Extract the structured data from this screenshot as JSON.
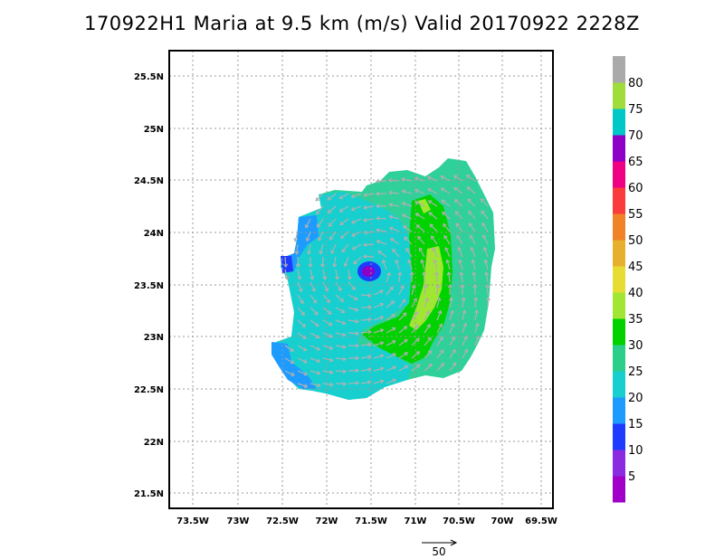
{
  "title": "170922H1 Maria at 9.5 km (m/s) Valid 20170922 2228Z",
  "map": {
    "lat_labels": [
      "25.5N",
      "25N",
      "24.5N",
      "24N",
      "23.5N",
      "23N",
      "22.5N",
      "22N",
      "21.5N"
    ],
    "lon_labels": [
      "73.5W",
      "73W",
      "72.5W",
      "72W",
      "71.5W",
      "71W",
      "70.5W",
      "70W",
      "69.5W"
    ],
    "lat_range": [
      21.35,
      25.85
    ],
    "lon_range": [
      -73.7,
      -69.6
    ],
    "grid": true,
    "grid_style": "dotted",
    "storm_center": {
      "lat": 23.65,
      "lon": -71.45
    }
  },
  "colorbar": {
    "labels": [
      "5",
      "10",
      "15",
      "20",
      "25",
      "30",
      "35",
      "40",
      "45",
      "50",
      "55",
      "60",
      "65",
      "70",
      "75",
      "80"
    ],
    "colors": [
      "#a000c8",
      "#8a2be2",
      "#1e3cff",
      "#1e9bff",
      "#17cfcf",
      "#2bcf8a",
      "#00d200",
      "#a0e632",
      "#e6dc32",
      "#e6af2d",
      "#f08228",
      "#fa3c3c",
      "#f00082",
      "#8c00c8",
      "#00c8c8",
      "#a0dc3c",
      "#aaaaaa"
    ],
    "units": "m/s"
  },
  "wind_scale": {
    "label": "50"
  }
}
